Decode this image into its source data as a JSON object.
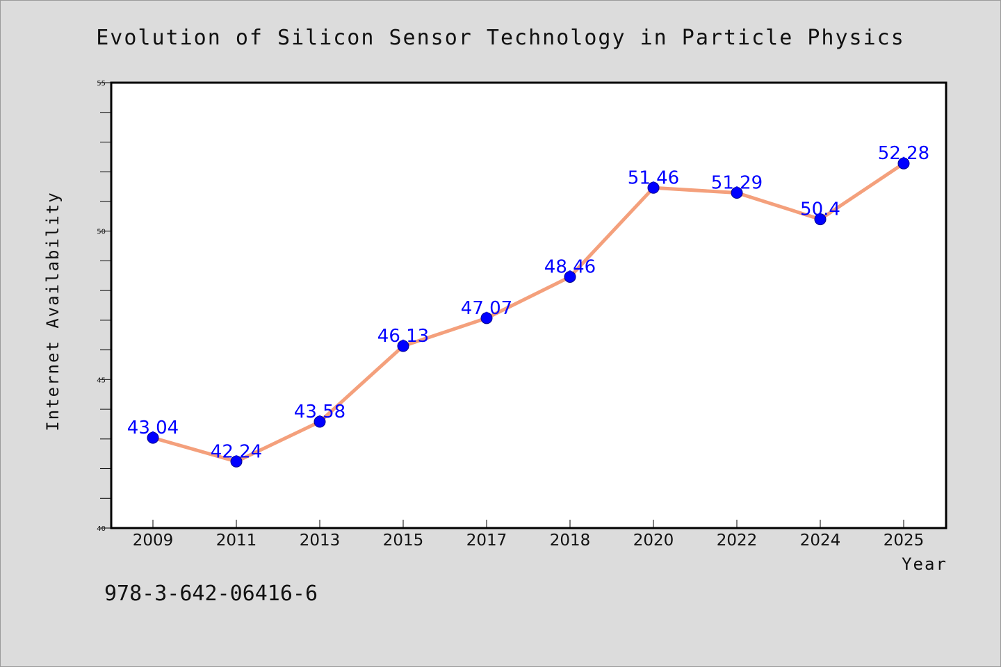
{
  "chart_data": {
    "type": "line",
    "title": "Evolution of Silicon Sensor Technology in Particle Physics",
    "xlabel": "Year",
    "ylabel": "Internet Availability",
    "categories": [
      "2009",
      "2011",
      "2013",
      "2015",
      "2017",
      "2018",
      "2020",
      "2022",
      "2024",
      "2025"
    ],
    "series": [
      {
        "values": [
          43.04,
          42.24,
          43.58,
          46.13,
          47.07,
          48.46,
          51.46,
          51.29,
          50.4,
          52.28
        ]
      }
    ],
    "data_labels": [
      "43.04",
      "42.24",
      "43.58",
      "46.13",
      "47.07",
      "48.46",
      "51.46",
      "51.29",
      "50.4",
      "52.28"
    ],
    "ylim": [
      40,
      55
    ],
    "y_ticks": [
      40,
      45,
      50,
      55
    ],
    "y_minor_step": 1,
    "grid": false,
    "legend": "none",
    "colors": {
      "line": "#f4a07c",
      "marker": "#0000ff",
      "label": "#0000ff",
      "background": "#dcdcdc",
      "plot_background": "#ffffff"
    }
  },
  "footer": {
    "code": "978-3-642-06416-6"
  }
}
